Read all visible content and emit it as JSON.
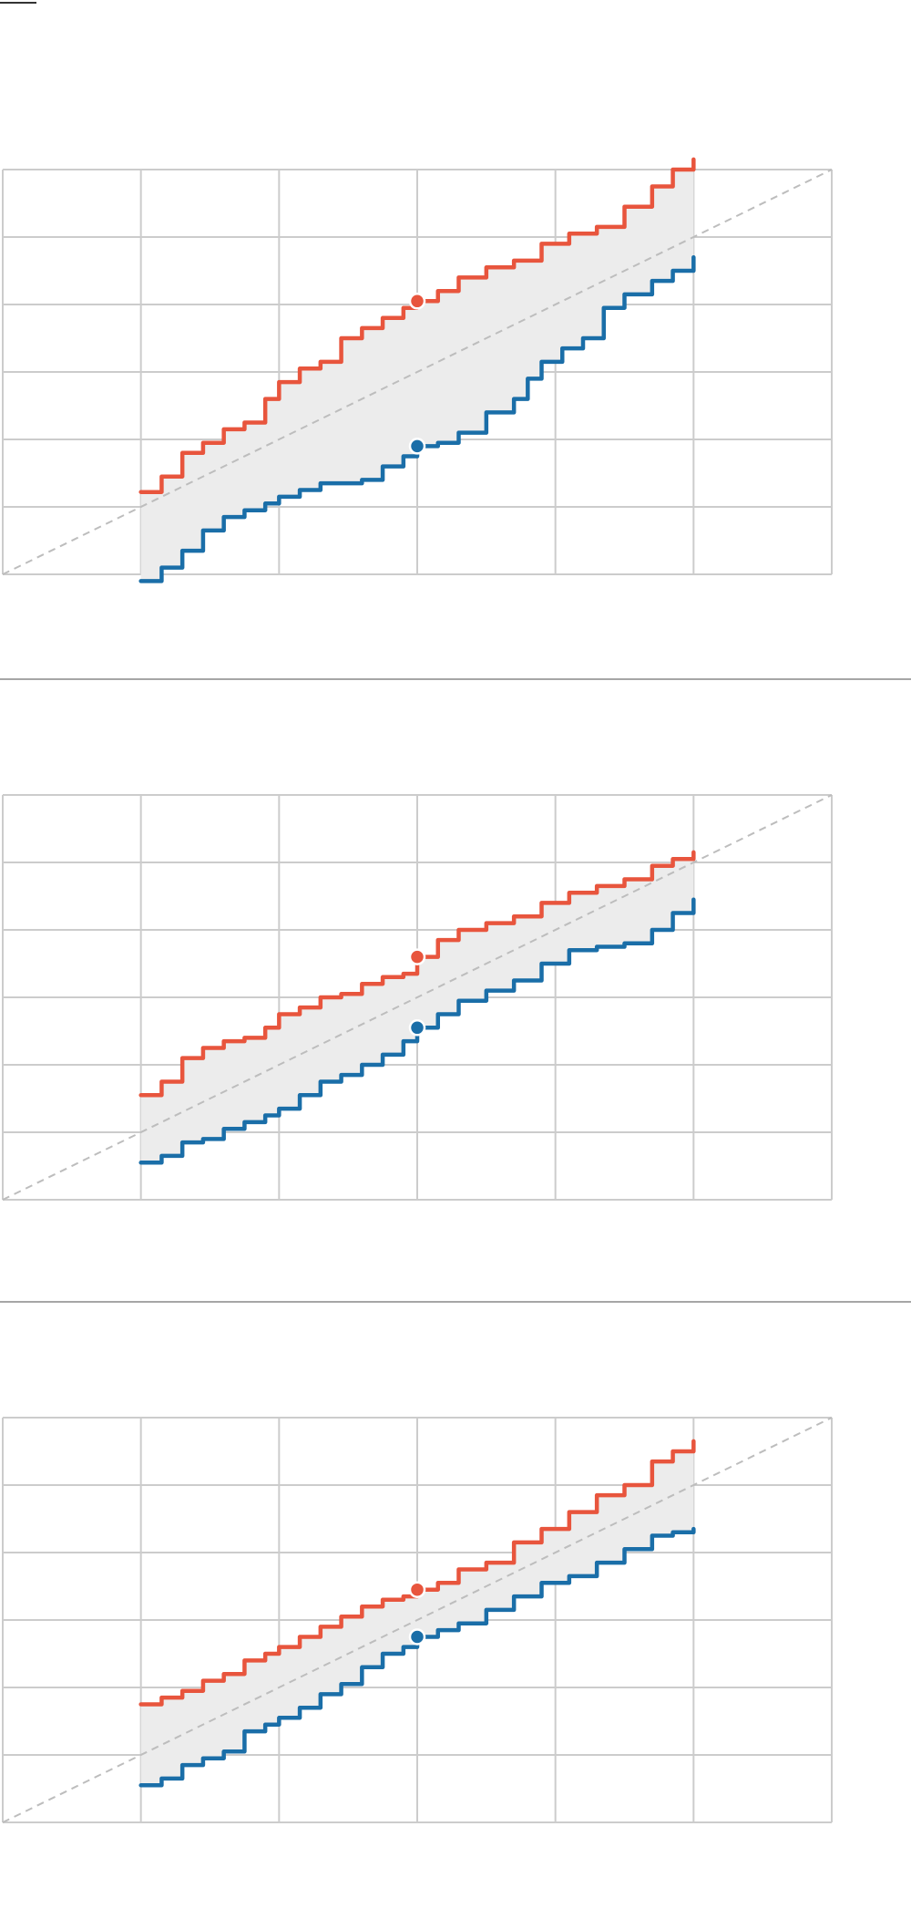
{
  "colors": {
    "upper": "#e8553d",
    "lower": "#1a6ea8",
    "band": "#ececec",
    "grid": "#cccccc",
    "diagonal": "#bdbdbd",
    "separator": "#888888"
  },
  "chart_data": [
    {
      "type": "line",
      "title": "",
      "xlim": [
        0,
        6
      ],
      "ylim": [
        0,
        6
      ],
      "grid": true,
      "diagonal": true,
      "highlight_x": 3,
      "series": [
        {
          "role": "upper",
          "points": [
            [
              1,
              1.22
            ],
            [
              1.15,
              1.45
            ],
            [
              1.3,
              1.8
            ],
            [
              1.45,
              1.95
            ],
            [
              1.6,
              2.15
            ],
            [
              1.75,
              2.25
            ],
            [
              1.9,
              2.6
            ],
            [
              2,
              2.85
            ],
            [
              2.15,
              3.05
            ],
            [
              2.3,
              3.15
            ],
            [
              2.45,
              3.5
            ],
            [
              2.6,
              3.65
            ],
            [
              2.75,
              3.8
            ],
            [
              2.9,
              3.95
            ],
            [
              3,
              4.05
            ],
            [
              3.15,
              4.2
            ],
            [
              3.3,
              4.4
            ],
            [
              3.5,
              4.55
            ],
            [
              3.7,
              4.65
            ],
            [
              3.9,
              4.9
            ],
            [
              4.1,
              5.05
            ],
            [
              4.3,
              5.15
            ],
            [
              4.5,
              5.45
            ],
            [
              4.7,
              5.75
            ],
            [
              4.85,
              6.0
            ],
            [
              5,
              6.15
            ]
          ]
        },
        {
          "role": "lower",
          "points": [
            [
              1,
              -0.1
            ],
            [
              1.15,
              0.1
            ],
            [
              1.3,
              0.35
            ],
            [
              1.45,
              0.65
            ],
            [
              1.6,
              0.85
            ],
            [
              1.75,
              0.95
            ],
            [
              1.9,
              1.05
            ],
            [
              2,
              1.15
            ],
            [
              2.15,
              1.25
            ],
            [
              2.3,
              1.35
            ],
            [
              2.45,
              1.35
            ],
            [
              2.6,
              1.4
            ],
            [
              2.75,
              1.6
            ],
            [
              2.9,
              1.75
            ],
            [
              3,
              1.9
            ],
            [
              3.15,
              1.95
            ],
            [
              3.3,
              2.1
            ],
            [
              3.5,
              2.4
            ],
            [
              3.7,
              2.6
            ],
            [
              3.8,
              2.9
            ],
            [
              3.9,
              3.15
            ],
            [
              4.05,
              3.35
            ],
            [
              4.2,
              3.5
            ],
            [
              4.35,
              3.95
            ],
            [
              4.5,
              4.15
            ],
            [
              4.7,
              4.35
            ],
            [
              4.85,
              4.5
            ],
            [
              5,
              4.7
            ]
          ]
        }
      ]
    },
    {
      "type": "line",
      "title": "",
      "xlim": [
        0,
        6
      ],
      "ylim": [
        0,
        6
      ],
      "grid": true,
      "diagonal": true,
      "highlight_x": 3,
      "series": [
        {
          "role": "upper",
          "points": [
            [
              1,
              1.55
            ],
            [
              1.15,
              1.75
            ],
            [
              1.3,
              2.1
            ],
            [
              1.45,
              2.25
            ],
            [
              1.6,
              2.35
            ],
            [
              1.75,
              2.4
            ],
            [
              1.9,
              2.55
            ],
            [
              2,
              2.75
            ],
            [
              2.15,
              2.85
            ],
            [
              2.3,
              3.0
            ],
            [
              2.45,
              3.05
            ],
            [
              2.6,
              3.2
            ],
            [
              2.75,
              3.3
            ],
            [
              2.9,
              3.35
            ],
            [
              3,
              3.6
            ],
            [
              3.15,
              3.85
            ],
            [
              3.3,
              4.0
            ],
            [
              3.5,
              4.1
            ],
            [
              3.7,
              4.2
            ],
            [
              3.9,
              4.4
            ],
            [
              4.1,
              4.55
            ],
            [
              4.3,
              4.65
            ],
            [
              4.5,
              4.75
            ],
            [
              4.7,
              4.95
            ],
            [
              4.85,
              5.05
            ],
            [
              5,
              5.15
            ]
          ]
        },
        {
          "role": "lower",
          "points": [
            [
              1,
              0.55
            ],
            [
              1.15,
              0.65
            ],
            [
              1.3,
              0.85
            ],
            [
              1.45,
              0.9
            ],
            [
              1.6,
              1.05
            ],
            [
              1.75,
              1.15
            ],
            [
              1.9,
              1.25
            ],
            [
              2,
              1.35
            ],
            [
              2.15,
              1.55
            ],
            [
              2.3,
              1.75
            ],
            [
              2.45,
              1.85
            ],
            [
              2.6,
              2.0
            ],
            [
              2.75,
              2.15
            ],
            [
              2.9,
              2.35
            ],
            [
              3,
              2.55
            ],
            [
              3.15,
              2.75
            ],
            [
              3.3,
              2.95
            ],
            [
              3.5,
              3.1
            ],
            [
              3.7,
              3.25
            ],
            [
              3.9,
              3.5
            ],
            [
              4.1,
              3.7
            ],
            [
              4.3,
              3.75
            ],
            [
              4.5,
              3.8
            ],
            [
              4.7,
              4.0
            ],
            [
              4.85,
              4.25
            ],
            [
              5,
              4.45
            ]
          ]
        }
      ]
    },
    {
      "type": "line",
      "title": "",
      "xlim": [
        0,
        6
      ],
      "ylim": [
        0,
        6
      ],
      "grid": true,
      "diagonal": true,
      "highlight_x": 3,
      "series": [
        {
          "role": "upper",
          "points": [
            [
              1,
              1.75
            ],
            [
              1.15,
              1.85
            ],
            [
              1.3,
              1.95
            ],
            [
              1.45,
              2.1
            ],
            [
              1.6,
              2.2
            ],
            [
              1.75,
              2.4
            ],
            [
              1.9,
              2.5
            ],
            [
              2,
              2.6
            ],
            [
              2.15,
              2.75
            ],
            [
              2.3,
              2.9
            ],
            [
              2.45,
              3.05
            ],
            [
              2.6,
              3.2
            ],
            [
              2.75,
              3.3
            ],
            [
              2.9,
              3.35
            ],
            [
              3,
              3.45
            ],
            [
              3.15,
              3.55
            ],
            [
              3.3,
              3.75
            ],
            [
              3.5,
              3.85
            ],
            [
              3.7,
              4.15
            ],
            [
              3.9,
              4.35
            ],
            [
              4.1,
              4.6
            ],
            [
              4.3,
              4.85
            ],
            [
              4.5,
              5.0
            ],
            [
              4.7,
              5.35
            ],
            [
              4.85,
              5.5
            ],
            [
              5,
              5.65
            ]
          ]
        },
        {
          "role": "lower",
          "points": [
            [
              1,
              0.55
            ],
            [
              1.15,
              0.65
            ],
            [
              1.3,
              0.85
            ],
            [
              1.45,
              0.95
            ],
            [
              1.6,
              1.05
            ],
            [
              1.75,
              1.35
            ],
            [
              1.9,
              1.45
            ],
            [
              2,
              1.55
            ],
            [
              2.15,
              1.7
            ],
            [
              2.3,
              1.9
            ],
            [
              2.45,
              2.05
            ],
            [
              2.6,
              2.3
            ],
            [
              2.75,
              2.5
            ],
            [
              2.9,
              2.6
            ],
            [
              3,
              2.75
            ],
            [
              3.15,
              2.85
            ],
            [
              3.3,
              2.95
            ],
            [
              3.5,
              3.15
            ],
            [
              3.7,
              3.35
            ],
            [
              3.9,
              3.55
            ],
            [
              4.1,
              3.65
            ],
            [
              4.3,
              3.85
            ],
            [
              4.5,
              4.05
            ],
            [
              4.7,
              4.25
            ],
            [
              4.85,
              4.3
            ],
            [
              5,
              4.35
            ]
          ]
        }
      ]
    }
  ]
}
